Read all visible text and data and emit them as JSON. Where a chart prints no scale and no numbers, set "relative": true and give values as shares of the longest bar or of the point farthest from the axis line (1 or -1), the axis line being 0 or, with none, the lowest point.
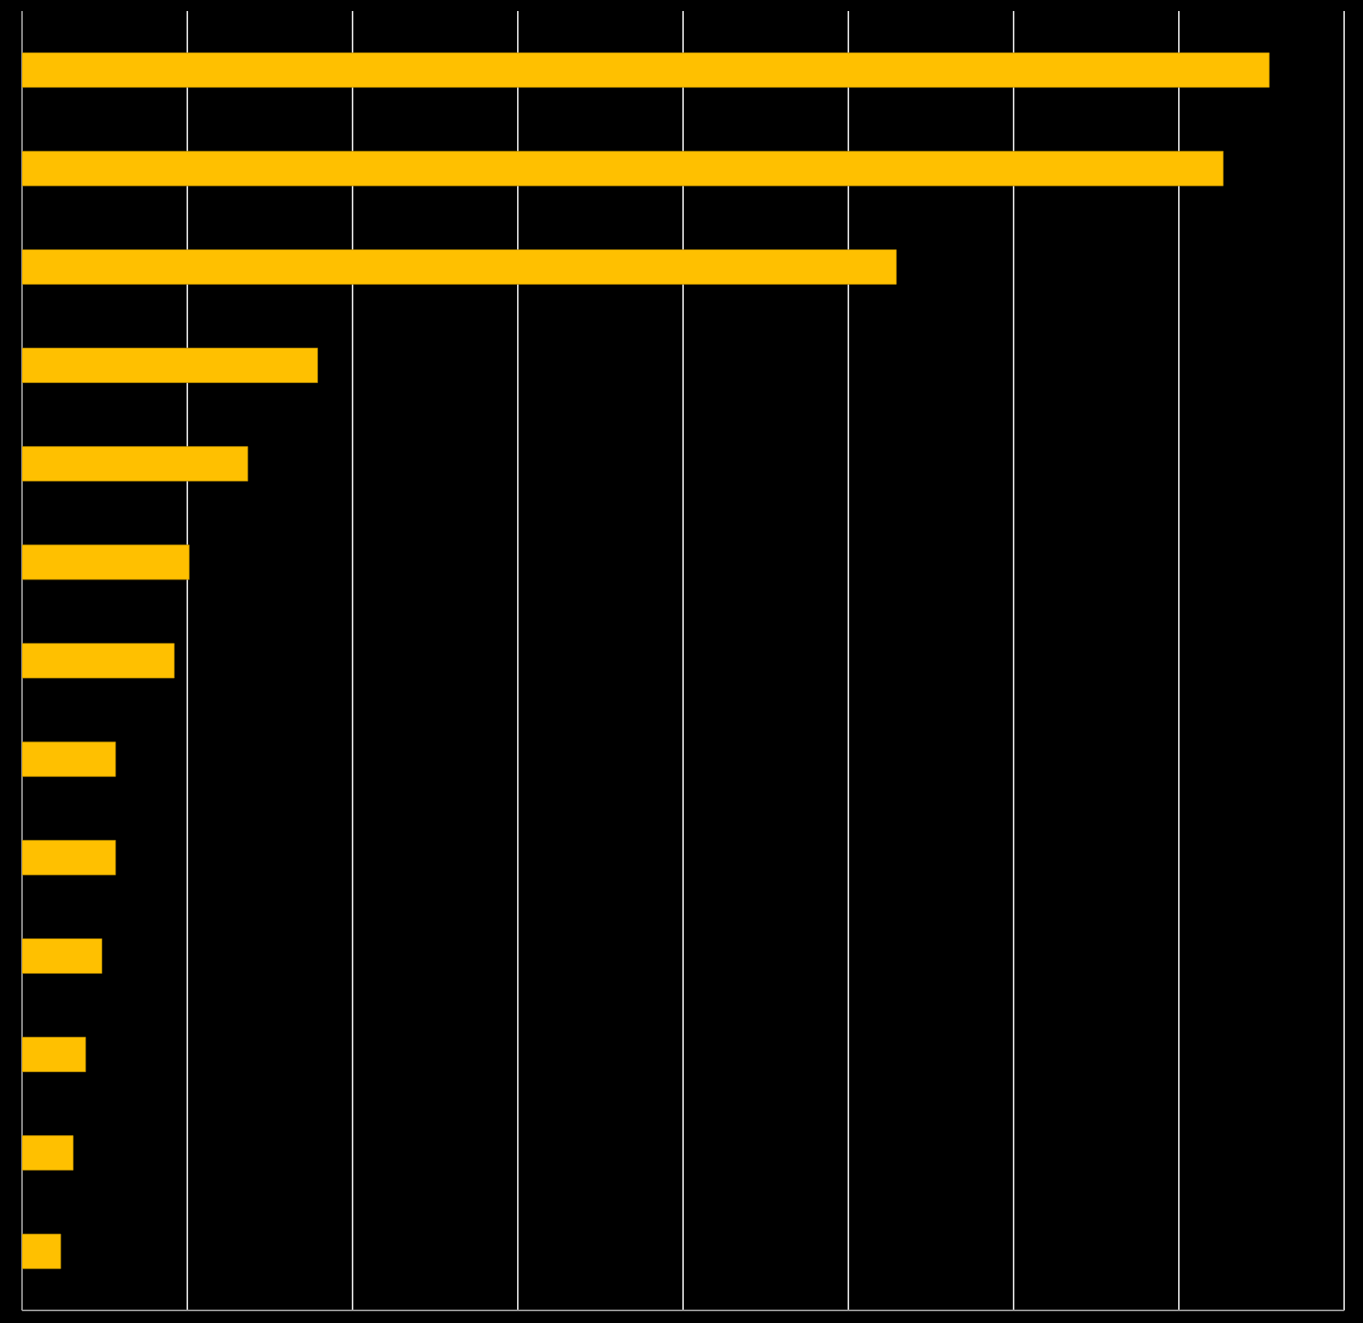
{
  "chart_data": {
    "type": "bar",
    "orientation": "horizontal",
    "relative": true,
    "categories": [
      null,
      null,
      null,
      null,
      null,
      null,
      null,
      null,
      null,
      null,
      null,
      null,
      null
    ],
    "values": [
      1,
      0.963,
      0.701,
      0.237,
      0.181,
      0.134,
      0.122,
      0.075,
      0.075,
      0.064,
      0.051,
      0.041,
      0.031
    ],
    "color": "#ffc000",
    "grid": "x"
  }
}
